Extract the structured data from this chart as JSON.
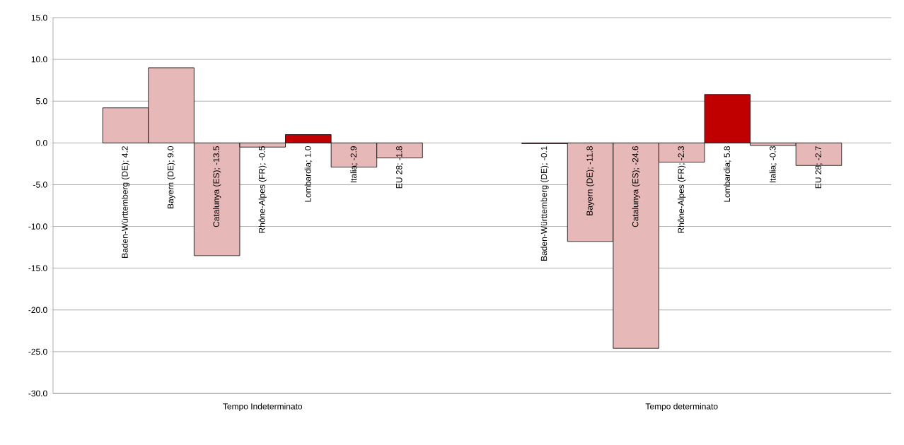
{
  "chart_data": {
    "type": "bar",
    "categories": [
      "Tempo Indeterminato",
      "Tempo determinato"
    ],
    "series": [
      {
        "name": "Baden-Württemberg (DE)",
        "color": "#e6b8b7",
        "values": [
          4.2,
          -0.1
        ],
        "value_labels": [
          "; 4.2",
          "; -0.1"
        ]
      },
      {
        "name": "Bayern (DE)",
        "color": "#e6b8b7",
        "values": [
          9.0,
          -11.8
        ],
        "value_labels": [
          "; 9.0",
          "; -11.8"
        ]
      },
      {
        "name": "Catalunya (ES)",
        "color": "#e6b8b7",
        "values": [
          -13.5,
          -24.6
        ],
        "value_labels": [
          "; -13.5",
          "; -24.6"
        ]
      },
      {
        "name": "Rhône-Alpes (FR)",
        "color": "#e6b8b7",
        "values": [
          -0.5,
          -2.3
        ],
        "value_labels": [
          "; -0.5",
          "; -2.3"
        ]
      },
      {
        "name": "Lombardia",
        "color": "#c00000",
        "values": [
          1.0,
          5.8
        ],
        "value_labels": [
          "; 1.0",
          "; 5.8"
        ]
      },
      {
        "name": "Italia",
        "color": "#e6b8b7",
        "values": [
          -2.9,
          -0.3
        ],
        "value_labels": [
          "; -2.9",
          "; -0.3"
        ]
      },
      {
        "name": "EU 28",
        "color": "#e6b8b7",
        "values": [
          -1.8,
          -2.7
        ],
        "value_labels": [
          "; -1.8",
          "; -2.7"
        ]
      }
    ],
    "ylim": [
      -30,
      15
    ],
    "yticks": [
      {
        "value": -30,
        "label": "-30.0"
      },
      {
        "value": -25,
        "label": "-25.0"
      },
      {
        "value": -20,
        "label": "-20.0"
      },
      {
        "value": -15,
        "label": "-15.0"
      },
      {
        "value": -10,
        "label": "-10.0"
      },
      {
        "value": -5,
        "label": "-5.0"
      },
      {
        "value": 0,
        "label": "0.0"
      },
      {
        "value": 5,
        "label": "5.0"
      },
      {
        "value": 10,
        "label": "10.0"
      },
      {
        "value": 15,
        "label": "15.0"
      }
    ],
    "grid": "y"
  }
}
